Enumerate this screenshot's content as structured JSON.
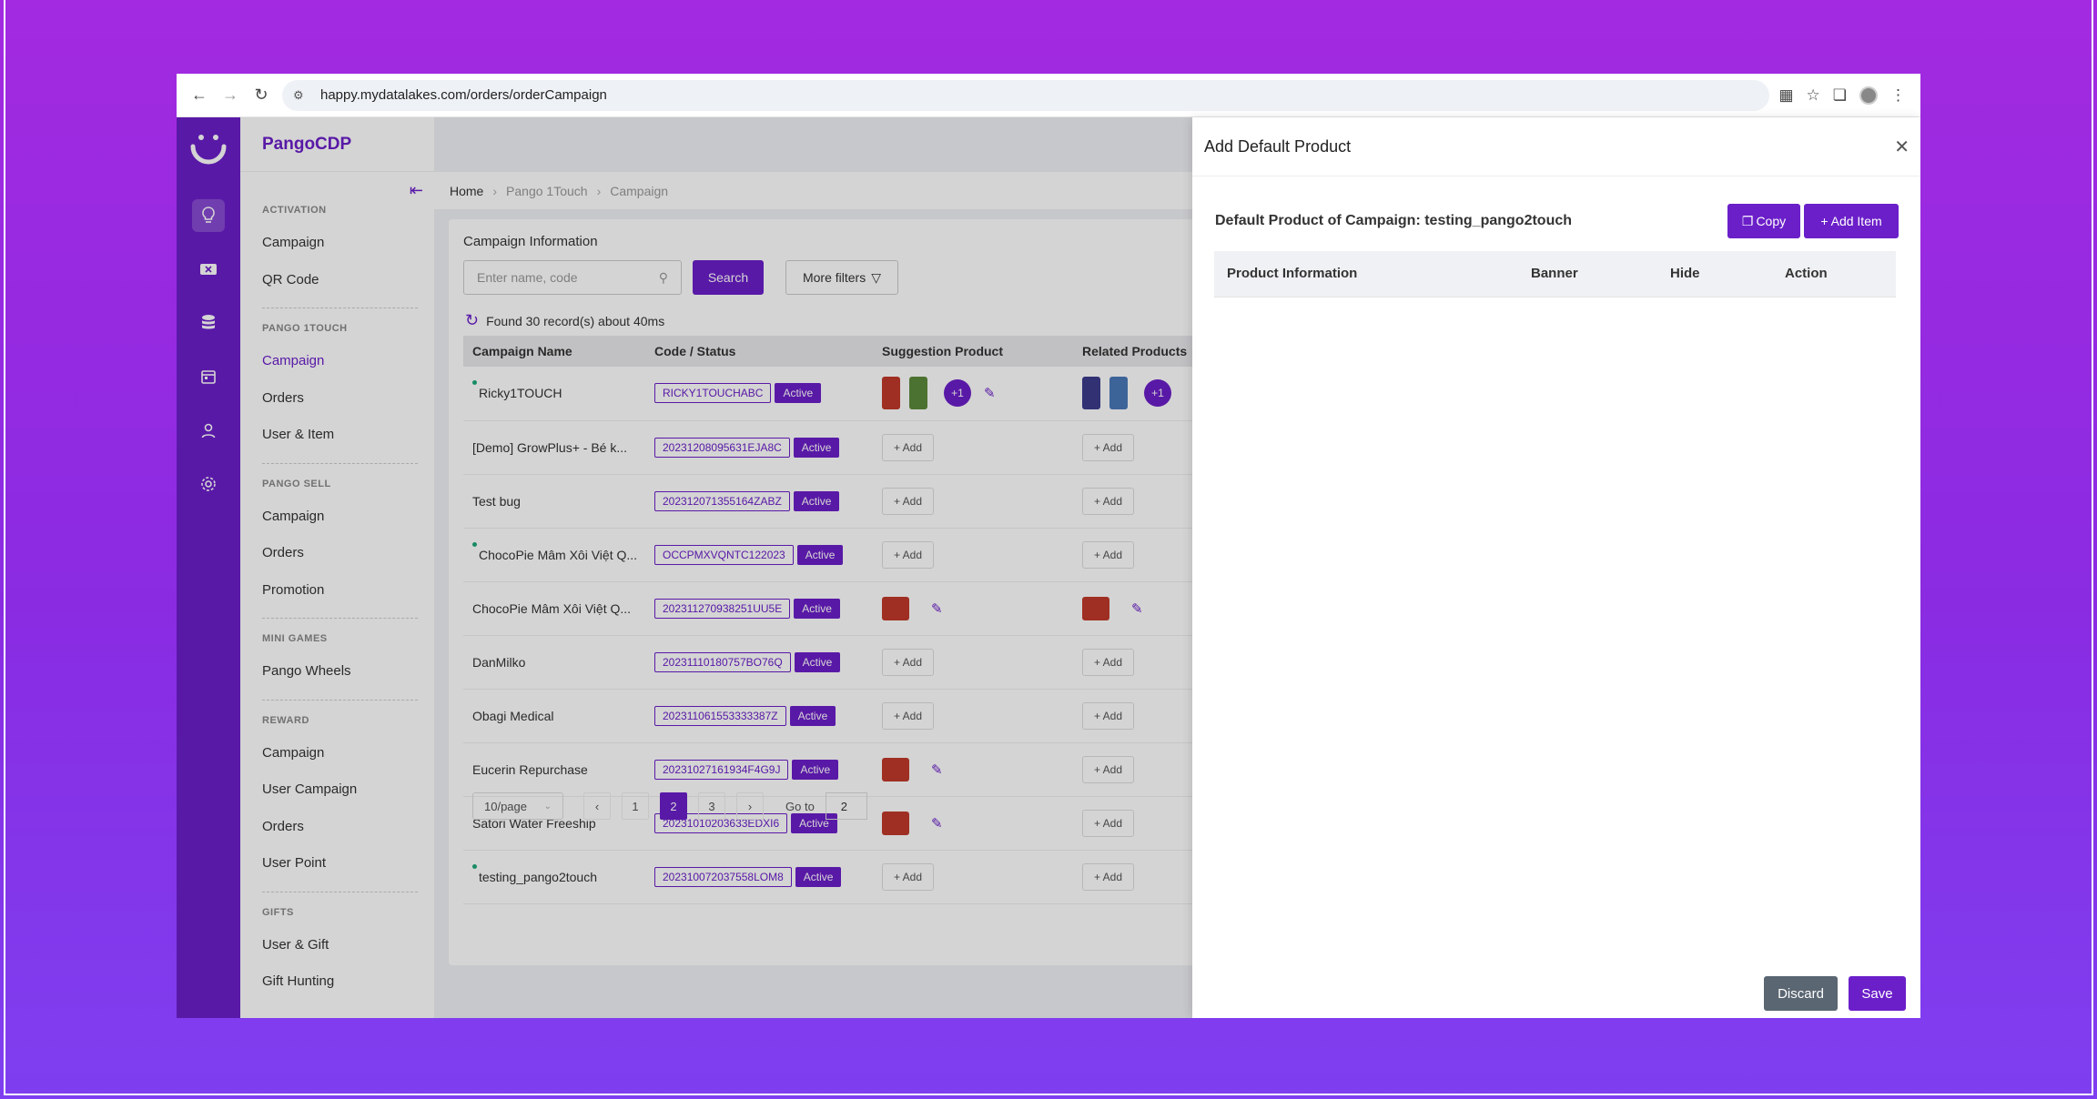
{
  "browser": {
    "url": "happy.mydatalakes.com/orders/orderCampaign"
  },
  "app": {
    "brand": "PangoCDP"
  },
  "sidebar": {
    "groups": [
      {
        "title": "ACTIVATION",
        "items": [
          "Campaign",
          "QR Code"
        ]
      },
      {
        "title": "PANGO 1TOUCH",
        "items": [
          "Campaign",
          "Orders",
          "User & Item"
        ]
      },
      {
        "title": "PANGO SELL",
        "items": [
          "Campaign",
          "Orders",
          "Promotion"
        ]
      },
      {
        "title": "MINI GAMES",
        "items": [
          "Pango Wheels"
        ]
      },
      {
        "title": "REWARD",
        "items": [
          "Campaign",
          "User Campaign",
          "Orders",
          "User Point"
        ]
      },
      {
        "title": "GIFTS",
        "items": [
          "User & Gift",
          "Gift Hunting"
        ]
      }
    ]
  },
  "breadcrumb": [
    "Home",
    "Pango 1Touch",
    "Campaign"
  ],
  "main": {
    "card_title": "Campaign Information",
    "search_placeholder": "Enter name, code",
    "search_label": "Search",
    "more_filters_label": "More filters",
    "found_text": "Found 30 record(s) about 40ms",
    "columns": [
      "Campaign Name",
      "Code / Status",
      "Suggestion Product",
      "Related Products"
    ],
    "rows": [
      {
        "name": "Ricky1TOUCH",
        "code": "RICKY1TOUCHABC",
        "status": "Active",
        "dot": true,
        "suggestion": "images",
        "suggestion_more": "+1",
        "related": "images",
        "related_more": "+1"
      },
      {
        "name": "[Demo] GrowPlus+ - Bé k...",
        "code": "20231208095631EJA8C",
        "status": "Active",
        "dot": false,
        "suggestion": "add",
        "related": "add"
      },
      {
        "name": "Test bug",
        "code": "20231207135516​4ZABZ",
        "status": "Active",
        "dot": false,
        "suggestion": "add",
        "related": "add"
      },
      {
        "name": "ChocoPie Mâm Xôi Việt Q...",
        "code": "OCCPMXVQNTC122023",
        "status": "Active",
        "dot": true,
        "suggestion": "add",
        "related": "add"
      },
      {
        "name": "ChocoPie Mâm Xôi Việt Q...",
        "code": "20231127093825​1UU5E",
        "status": "Active",
        "dot": false,
        "suggestion": "image",
        "related": "image"
      },
      {
        "name": "DanMilko",
        "code": "20231110180757BO76Q",
        "status": "Active",
        "dot": false,
        "suggestion": "add",
        "related": "add"
      },
      {
        "name": "Obagi Medical",
        "code": "20231106155333​3387Z",
        "status": "Active",
        "dot": false,
        "suggestion": "add",
        "related": "add"
      },
      {
        "name": "Eucerin Repurchase",
        "code": "20231027161934F4G9J",
        "status": "Active",
        "dot": false,
        "suggestion": "image",
        "related": "add"
      },
      {
        "name": "Satori Water Freeship",
        "code": "20231010203633EDXI6",
        "status": "Active",
        "dot": false,
        "suggestion": "image",
        "related": "add"
      },
      {
        "name": "testing_pango2touch",
        "code": "20231007203755​8LOM8",
        "status": "Active",
        "dot": true,
        "suggestion": "add",
        "related": "add"
      }
    ],
    "add_label": "+ Add",
    "pagination": {
      "page_size": "10/page",
      "pages": [
        "1",
        "2",
        "3"
      ],
      "current": "2",
      "goto_label": "Go to",
      "goto_value": "2"
    }
  },
  "drawer": {
    "title": "Add Default Product",
    "subtitle": "Default Product of Campaign: testing_pango2touch",
    "copy_label": "Copy",
    "add_item_label": "+ Add Item",
    "columns": [
      "Product Information",
      "Banner",
      "Hide",
      "Action"
    ],
    "discard_label": "Discard",
    "save_label": "Save"
  },
  "colors": {
    "brand": "#6b1fc9",
    "background": "#a32ae0"
  }
}
